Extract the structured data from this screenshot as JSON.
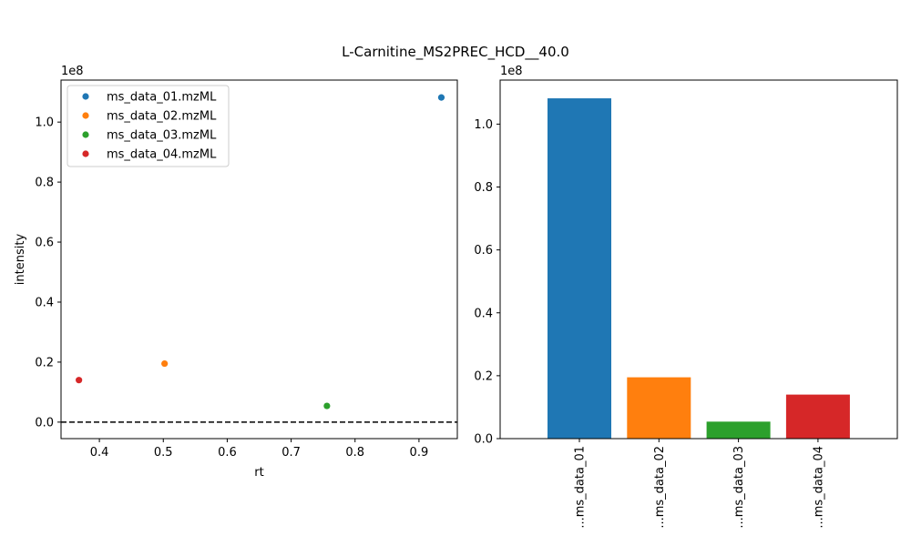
{
  "figure_title": "L-Carnitine_MS2PREC_HCD__40.0",
  "chart_data": [
    {
      "type": "scatter",
      "xlabel": "rt",
      "ylabel": "intensity",
      "y_offset_label": "1e8",
      "xlim": [
        0.34,
        0.96
      ],
      "ylim": [
        -0.055,
        1.14
      ],
      "x_ticks": [
        "0.4",
        "0.5",
        "0.6",
        "0.7",
        "0.8",
        "0.9"
      ],
      "x_tick_values": [
        0.4,
        0.5,
        0.6,
        0.7,
        0.8,
        0.9
      ],
      "y_ticks": [
        "0.0",
        "0.2",
        "0.4",
        "0.6",
        "0.8",
        "1.0"
      ],
      "y_tick_values": [
        0.0,
        0.2,
        0.4,
        0.6,
        0.8,
        1.0
      ],
      "hline": {
        "y": 0,
        "style": "dashed",
        "color": "#000000"
      },
      "legend_position": "top-left",
      "series": [
        {
          "name": "ms_data_01.mzML",
          "color": "#1f77b4",
          "x": 0.935,
          "y": 1.082
        },
        {
          "name": "ms_data_02.mzML",
          "color": "#ff7f0e",
          "x": 0.502,
          "y": 0.195
        },
        {
          "name": "ms_data_03.mzML",
          "color": "#2ca02c",
          "x": 0.756,
          "y": 0.054
        },
        {
          "name": "ms_data_04.mzML",
          "color": "#d62728",
          "x": 0.368,
          "y": 0.14
        }
      ]
    },
    {
      "type": "bar",
      "y_offset_label": "1e8",
      "ylim": [
        0.0,
        1.14
      ],
      "y_ticks": [
        "0.0",
        "0.2",
        "0.4",
        "0.6",
        "0.8",
        "1.0"
      ],
      "y_tick_values": [
        0.0,
        0.2,
        0.4,
        0.6,
        0.8,
        1.0
      ],
      "categories": [
        "...ms_data_01",
        "...ms_data_02",
        "...ms_data_03",
        "...ms_data_04"
      ],
      "values": [
        1.082,
        0.195,
        0.054,
        0.14
      ],
      "colors": [
        "#1f77b4",
        "#ff7f0e",
        "#2ca02c",
        "#d62728"
      ]
    }
  ]
}
